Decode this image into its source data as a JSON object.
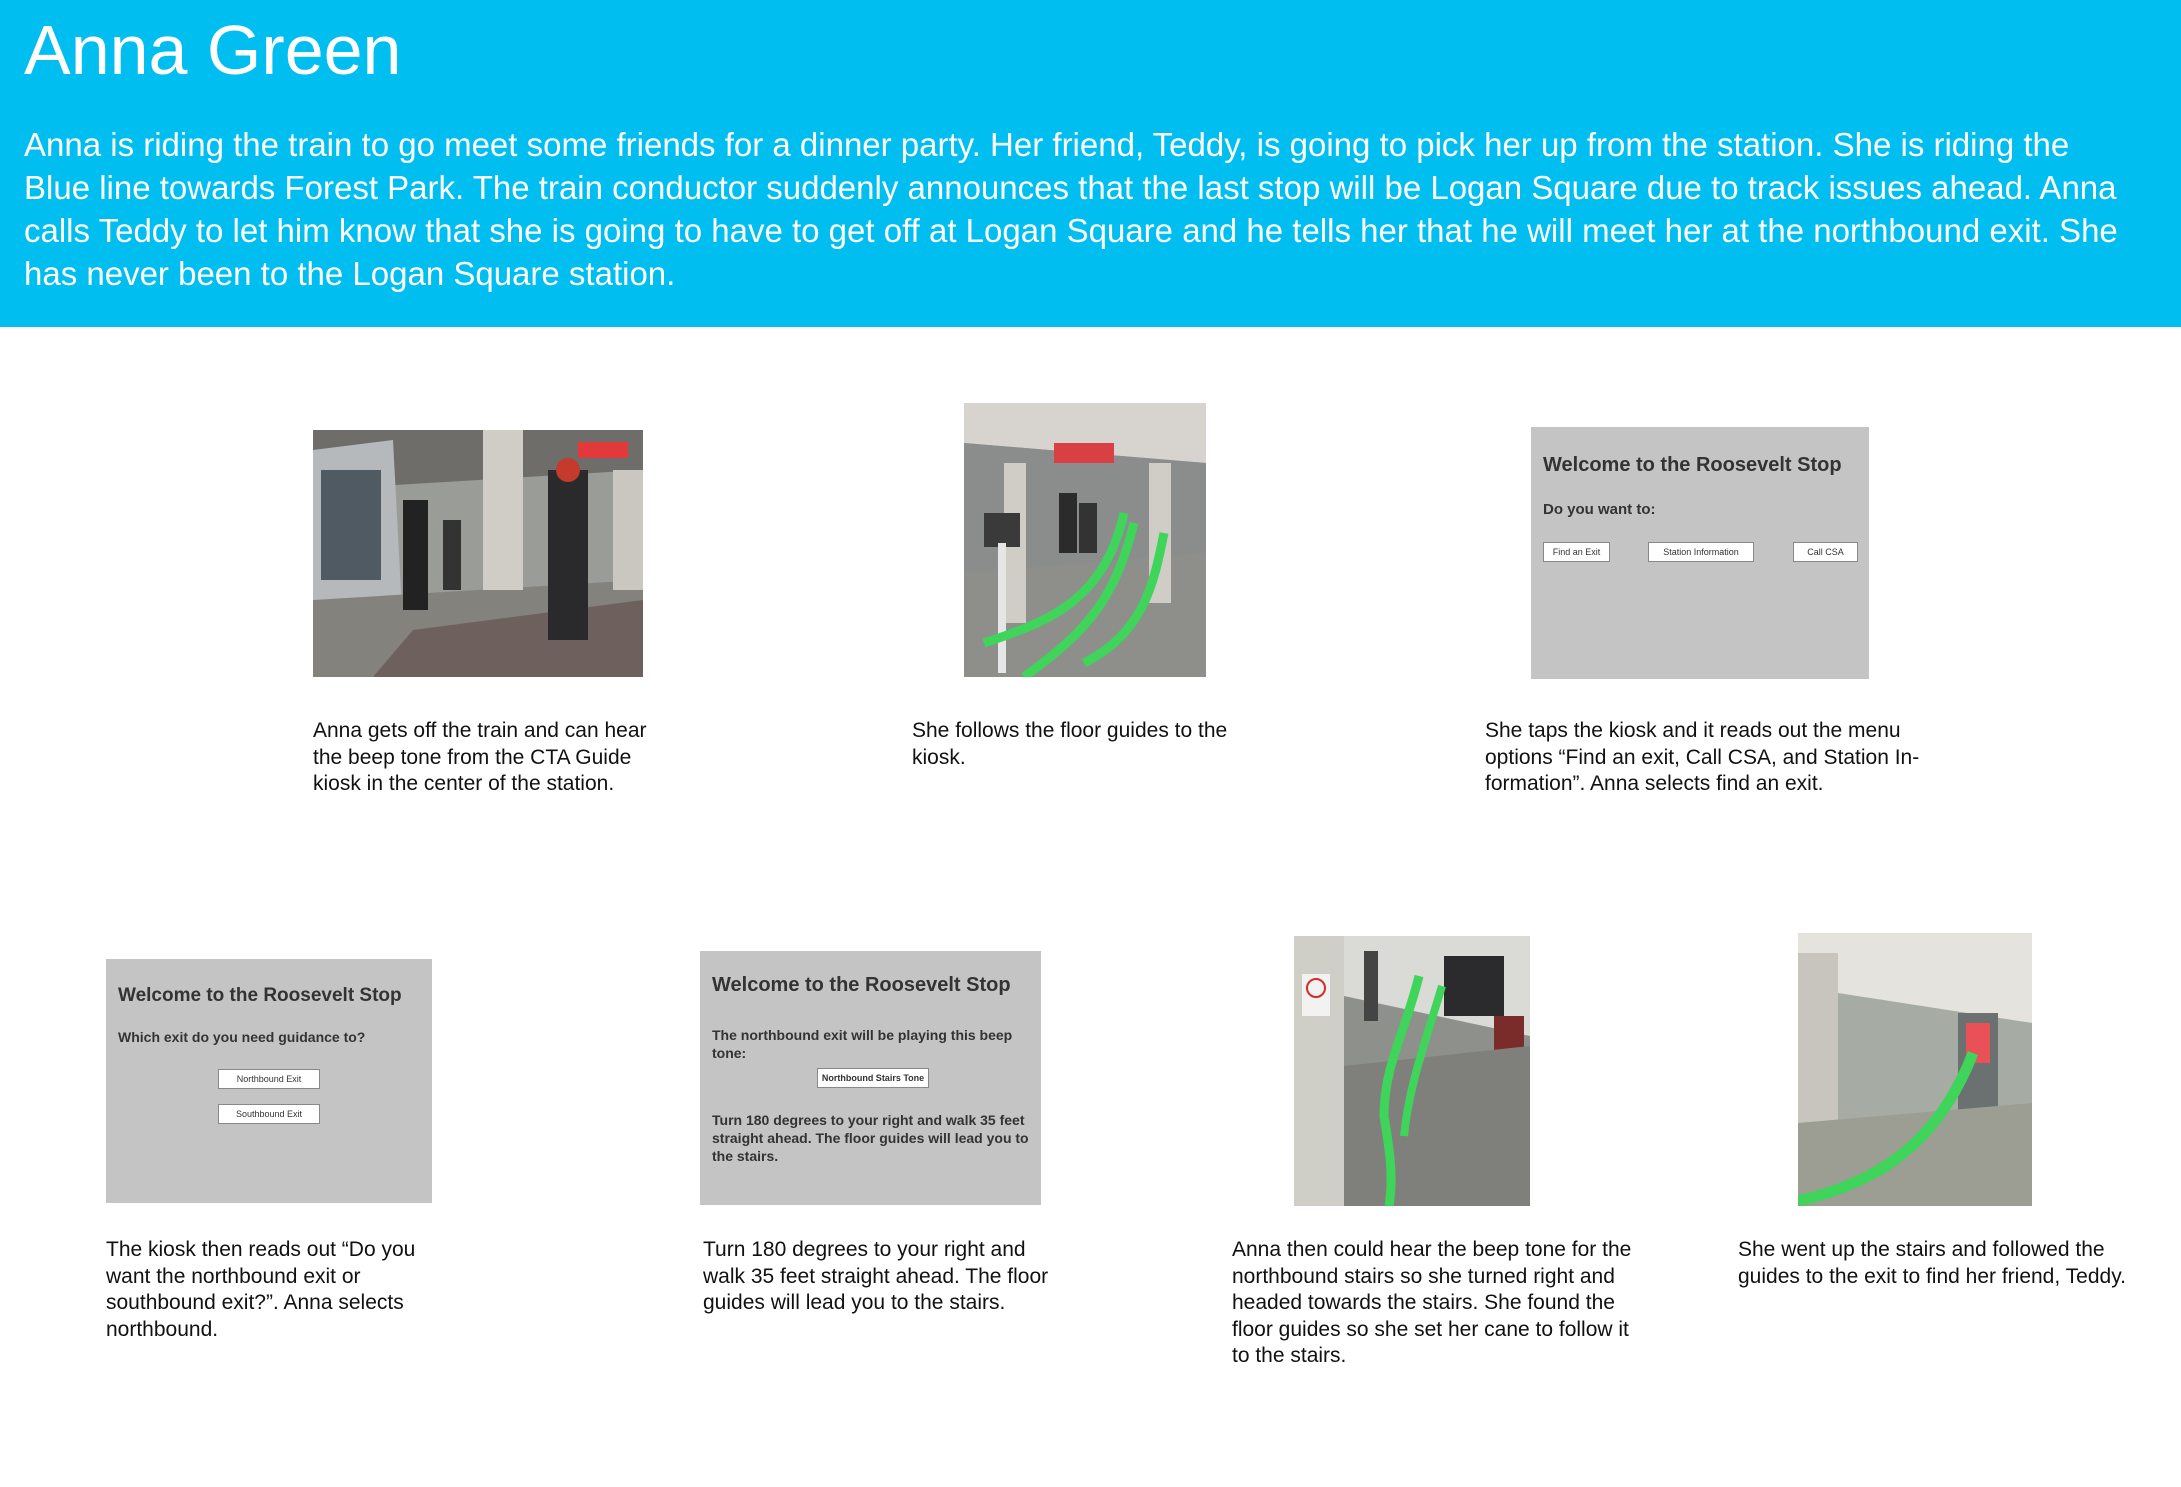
{
  "header": {
    "title": "Anna Green",
    "description": "Anna is riding the train to go meet some friends for a dinner party. Her friend, Teddy, is going to pick her up from the station. She is riding the Blue line towards Forest Park. The train conductor suddenly announces that the last stop will be Logan Square due to track issues ahead. Anna calls Teddy to let him know that she is going to have to get off at Logan Square and he tells her that he will meet her at the northbound exit. She has never been to the Logan Square station."
  },
  "colors": {
    "header_bg": "#00bff0",
    "kiosk_bg": "#c4c4c4",
    "floor_guide": "#3fd45a"
  },
  "steps": [
    {
      "caption": "Anna gets off the train and can hear the beep tone from the CTA Guide kiosk in the center of the station."
    },
    {
      "caption": "She follows the floor guides to the kiosk."
    },
    {
      "caption": "She taps the kiosk and it reads out the menu options “Find an exit, Call CSA, and Station In-formation”. Anna selects find an exit."
    },
    {
      "caption": "The kiosk then reads out “Do you want the northbound exit or southbound exit?”. Anna selects northbound."
    },
    {
      "caption": "Turn 180 degrees to your right and walk 35 feet straight ahead. The floor guides will lead you to the stairs."
    },
    {
      "caption": "Anna then could hear the beep tone for the northbound stairs so she turned right and headed towards the stairs. She found the floor guides so she set her cane to follow it to the stairs."
    },
    {
      "caption": "She went up the stairs and followed the guides to the exit to find her friend, Teddy."
    }
  ],
  "kiosk_menu": {
    "title": "Welcome to the Roosevelt Stop",
    "prompt": "Do you want to:",
    "buttons": [
      "Find an Exit",
      "Station Information",
      "Call CSA"
    ]
  },
  "kiosk_exit": {
    "title": "Welcome to the Roosevelt Stop",
    "prompt": "Which exit do you need guidance to?",
    "buttons": [
      "Northbound Exit",
      "Southbound Exit"
    ]
  },
  "kiosk_tone": {
    "title": "Welcome to the Roosevelt Stop",
    "line1": "The northbound exit will be playing this beep tone:",
    "button": "Northbound Stairs Tone",
    "line2": "Turn 180 degrees to your right and walk 35 feet straight ahead. The floor guides will lead you to the stairs."
  }
}
